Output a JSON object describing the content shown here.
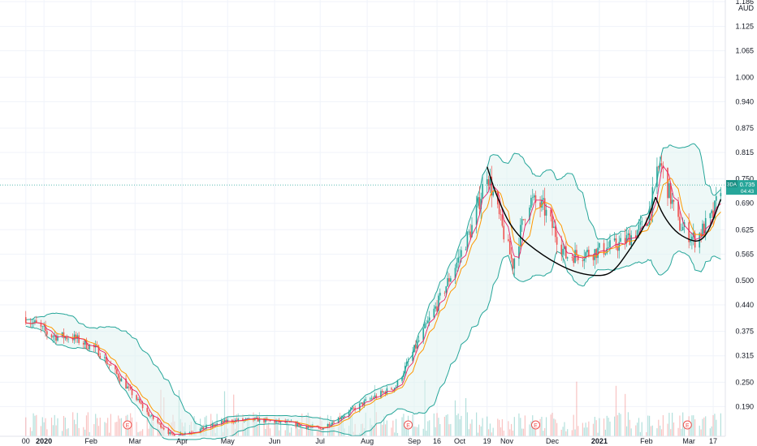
{
  "chart_data": {
    "type": "candlestick",
    "currency": "AUD",
    "ylim": [
      0.125,
      1.186
    ],
    "y_tick_labels": [
      "1.186",
      "1.125",
      "1.065",
      "1.000",
      "0.940",
      "0.875",
      "0.815",
      "0.750",
      "0.690",
      "0.625",
      "0.565",
      "0.500",
      "0.440",
      "0.375",
      "0.315",
      "0.250",
      "0.190"
    ],
    "x_tick_labels": [
      "00",
      "2020",
      "Feb",
      "Mar",
      "Apr",
      "May",
      "Jun",
      "Jul",
      "Aug",
      "Sep",
      "16",
      "Oct",
      "19",
      "Nov",
      "Dec",
      "2021",
      "Feb",
      "Mar",
      "17"
    ],
    "x_tick_dates": [
      "2019-12-20",
      "2020-01-01",
      "2020-02-01",
      "2020-03-01",
      "2020-04-01",
      "2020-05-01",
      "2020-06-01",
      "2020-07-01",
      "2020-08-01",
      "2020-09-01",
      "2020-09-16",
      "2020-10-01",
      "2020-10-19",
      "2020-11-01",
      "2020-12-01",
      "2021-01-01",
      "2021-02-01",
      "2021-03-01",
      "2021-03-17"
    ],
    "close_series": [
      {
        "date": "2019-12-20",
        "close": 0.41
      },
      {
        "date": "2020-01-05",
        "close": 0.365
      },
      {
        "date": "2020-01-20",
        "close": 0.36
      },
      {
        "date": "2020-02-05",
        "close": 0.33
      },
      {
        "date": "2020-02-20",
        "close": 0.26
      },
      {
        "date": "2020-03-10",
        "close": 0.17
      },
      {
        "date": "2020-03-25",
        "close": 0.12
      },
      {
        "date": "2020-04-10",
        "close": 0.13
      },
      {
        "date": "2020-05-01",
        "close": 0.155
      },
      {
        "date": "2020-05-20",
        "close": 0.158
      },
      {
        "date": "2020-06-10",
        "close": 0.15
      },
      {
        "date": "2020-07-01",
        "close": 0.135
      },
      {
        "date": "2020-07-15",
        "close": 0.165
      },
      {
        "date": "2020-08-01",
        "close": 0.205
      },
      {
        "date": "2020-08-20",
        "close": 0.24
      },
      {
        "date": "2020-09-01",
        "close": 0.33
      },
      {
        "date": "2020-09-16",
        "close": 0.44
      },
      {
        "date": "2020-10-01",
        "close": 0.56
      },
      {
        "date": "2020-10-10",
        "close": 0.64
      },
      {
        "date": "2020-10-19",
        "close": 0.77
      },
      {
        "date": "2020-10-28",
        "close": 0.64
      },
      {
        "date": "2020-11-05",
        "close": 0.54
      },
      {
        "date": "2020-11-15",
        "close": 0.7
      },
      {
        "date": "2020-11-25",
        "close": 0.68
      },
      {
        "date": "2020-12-10",
        "close": 0.56
      },
      {
        "date": "2020-12-28",
        "close": 0.57
      },
      {
        "date": "2021-01-15",
        "close": 0.59
      },
      {
        "date": "2021-02-01",
        "close": 0.64
      },
      {
        "date": "2021-02-10",
        "close": 0.79
      },
      {
        "date": "2021-02-22",
        "close": 0.64
      },
      {
        "date": "2021-03-05",
        "close": 0.6
      },
      {
        "date": "2021-03-17",
        "close": 0.66
      },
      {
        "date": "2021-03-22",
        "close": 0.735
      }
    ],
    "last_price": {
      "label": "3DA",
      "value": "0.735",
      "countdown": "04:43"
    },
    "volume_marker_labels": [
      "E",
      "E",
      "E",
      "E"
    ],
    "volume_marker_dates": [
      "2020-02-25",
      "2020-08-28",
      "2020-11-20",
      "2021-02-28"
    ],
    "pattern_curves": [
      {
        "points": [
          [
            "2020-10-19",
            0.78
          ],
          [
            "2020-10-25",
            0.71
          ],
          [
            "2020-11-05",
            0.62
          ],
          [
            "2020-11-25",
            0.56
          ],
          [
            "2020-12-15",
            0.52
          ],
          [
            "2021-01-01",
            0.51
          ],
          [
            "2021-01-10",
            0.52
          ],
          [
            "2021-01-20",
            0.57
          ],
          [
            "2021-02-01",
            0.64
          ],
          [
            "2021-02-07",
            0.705
          ]
        ]
      },
      {
        "points": [
          [
            "2021-02-07",
            0.705
          ],
          [
            "2021-02-12",
            0.66
          ],
          [
            "2021-02-20",
            0.62
          ],
          [
            "2021-03-01",
            0.6
          ],
          [
            "2021-03-08",
            0.595
          ],
          [
            "2021-03-14",
            0.62
          ],
          [
            "2021-03-22",
            0.7
          ]
        ]
      }
    ],
    "colors": {
      "price_up": "#26a69a",
      "price_down": "#ef5350",
      "band": "#26a69a",
      "band_fill": "#e0f2f1",
      "ma_orange": "#ff9800",
      "ma_red": "#e91e63",
      "grid": "#f0f3fa",
      "text": "#131722",
      "curve": "#000000",
      "badge": "#26a69a"
    },
    "grid": true
  }
}
